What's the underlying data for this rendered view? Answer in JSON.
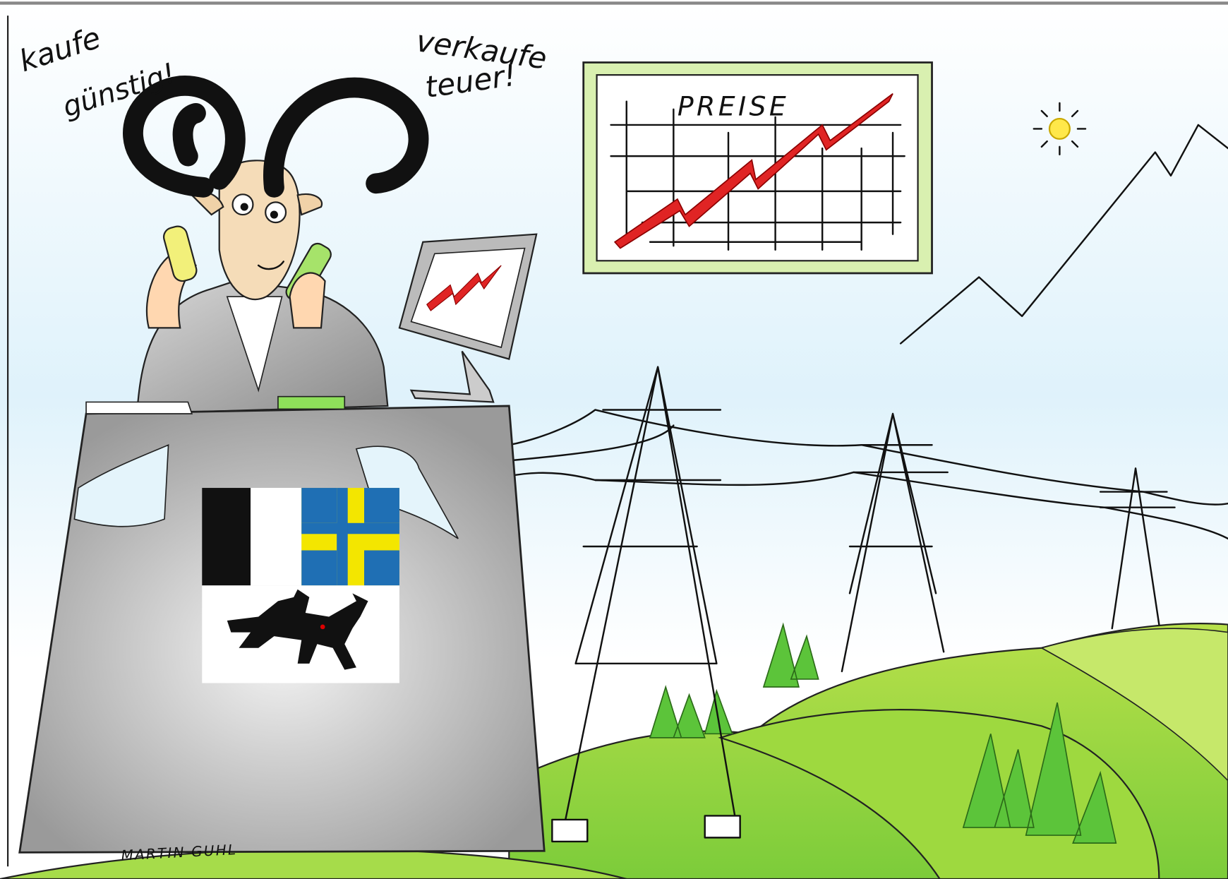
{
  "speech": {
    "left": [
      "kaufe",
      "günstig!"
    ],
    "right": [
      "verkaufe",
      "teuer!"
    ]
  },
  "board": {
    "title": "PREISE"
  },
  "signature": "MARTIN GUHL"
}
